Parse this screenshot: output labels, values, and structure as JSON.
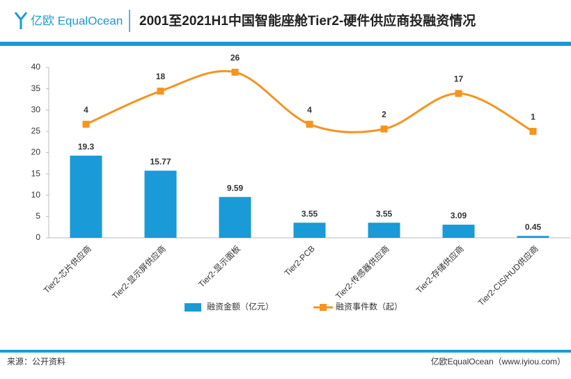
{
  "header": {
    "logo": "亿欧 EqualOcean"
  },
  "chart_data": {
    "type": "bar-line",
    "title": "2001至2021H1中国智能座舱Tier2-硬件供应商投融资情况",
    "categories": [
      "Tier2-芯片供应商",
      "Tier2-显示屏供应商",
      "Tier2-显示面板",
      "Tier2-PCB",
      "Tier2-传感器供应商",
      "Tier2-存储供应商",
      "Tier2-CIS/HUD供应商"
    ],
    "series": [
      {
        "name": "融资金额（亿元）",
        "type": "bar",
        "color": "#1a9ad6",
        "values": [
          19.3,
          15.77,
          9.59,
          3.55,
          3.55,
          3.09,
          0.45
        ]
      },
      {
        "name": "融资事件数（起）",
        "type": "line",
        "color": "#f7931e",
        "axis": "y2",
        "values": [
          4,
          18,
          26,
          4,
          2,
          17,
          1
        ]
      }
    ],
    "ylim": [
      0,
      40
    ],
    "yticks": [
      0,
      5,
      10,
      15,
      20,
      25,
      30,
      35,
      40
    ],
    "y2lim": [
      -44,
      28
    ],
    "grid": false,
    "smooth": true,
    "legend": "bottom"
  },
  "footer": {
    "source": "来源：公开资料",
    "credit": "亿欧EqualOcean（www.iyiou.com）"
  }
}
